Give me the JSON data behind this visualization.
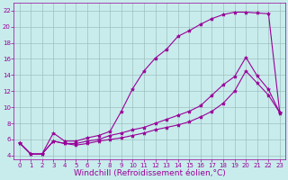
{
  "xlabel": "Windchill (Refroidissement éolien,°C)",
  "ylabel": "",
  "bg_color": "#c8ecec",
  "grid_color": "#9fbfbf",
  "line_color": "#990099",
  "marker": "*",
  "xlim": [
    -0.5,
    23.5
  ],
  "ylim": [
    3.5,
    23
  ],
  "xticks": [
    0,
    1,
    2,
    3,
    4,
    5,
    6,
    7,
    8,
    9,
    10,
    11,
    12,
    13,
    14,
    15,
    16,
    17,
    18,
    19,
    20,
    21,
    22,
    23
  ],
  "yticks": [
    4,
    6,
    8,
    10,
    12,
    14,
    16,
    18,
    20,
    22
  ],
  "line1_x": [
    0,
    1,
    2,
    3,
    4,
    5,
    6,
    7,
    8,
    9,
    10,
    11,
    12,
    13,
    14,
    15,
    16,
    17,
    18,
    19,
    20,
    21,
    22,
    23
  ],
  "line1_y": [
    5.6,
    4.2,
    4.2,
    6.8,
    5.8,
    5.8,
    6.2,
    6.5,
    7.0,
    9.5,
    12.3,
    14.5,
    16.1,
    17.2,
    18.8,
    19.5,
    20.3,
    21.0,
    21.5,
    21.8,
    21.8,
    21.7,
    21.6,
    9.2
  ],
  "line2_x": [
    0,
    1,
    2,
    3,
    4,
    5,
    6,
    7,
    8,
    9,
    10,
    11,
    12,
    13,
    14,
    15,
    16,
    17,
    18,
    19,
    20,
    21,
    22,
    23
  ],
  "line2_y": [
    5.6,
    4.2,
    4.2,
    5.8,
    5.5,
    5.5,
    5.8,
    6.0,
    6.5,
    6.8,
    7.2,
    7.5,
    8.0,
    8.5,
    9.0,
    9.5,
    10.2,
    11.5,
    12.8,
    13.8,
    16.2,
    13.9,
    12.2,
    9.3
  ],
  "line3_x": [
    0,
    1,
    2,
    3,
    4,
    5,
    6,
    7,
    8,
    9,
    10,
    11,
    12,
    13,
    14,
    15,
    16,
    17,
    18,
    19,
    20,
    21,
    22,
    23
  ],
  "line3_y": [
    5.6,
    4.2,
    4.2,
    5.8,
    5.5,
    5.3,
    5.5,
    5.8,
    6.0,
    6.2,
    6.5,
    6.8,
    7.2,
    7.5,
    7.8,
    8.2,
    8.8,
    9.5,
    10.5,
    12.0,
    14.5,
    13.0,
    11.5,
    9.3
  ],
  "tick_fontsize": 5,
  "label_fontsize": 6.5
}
